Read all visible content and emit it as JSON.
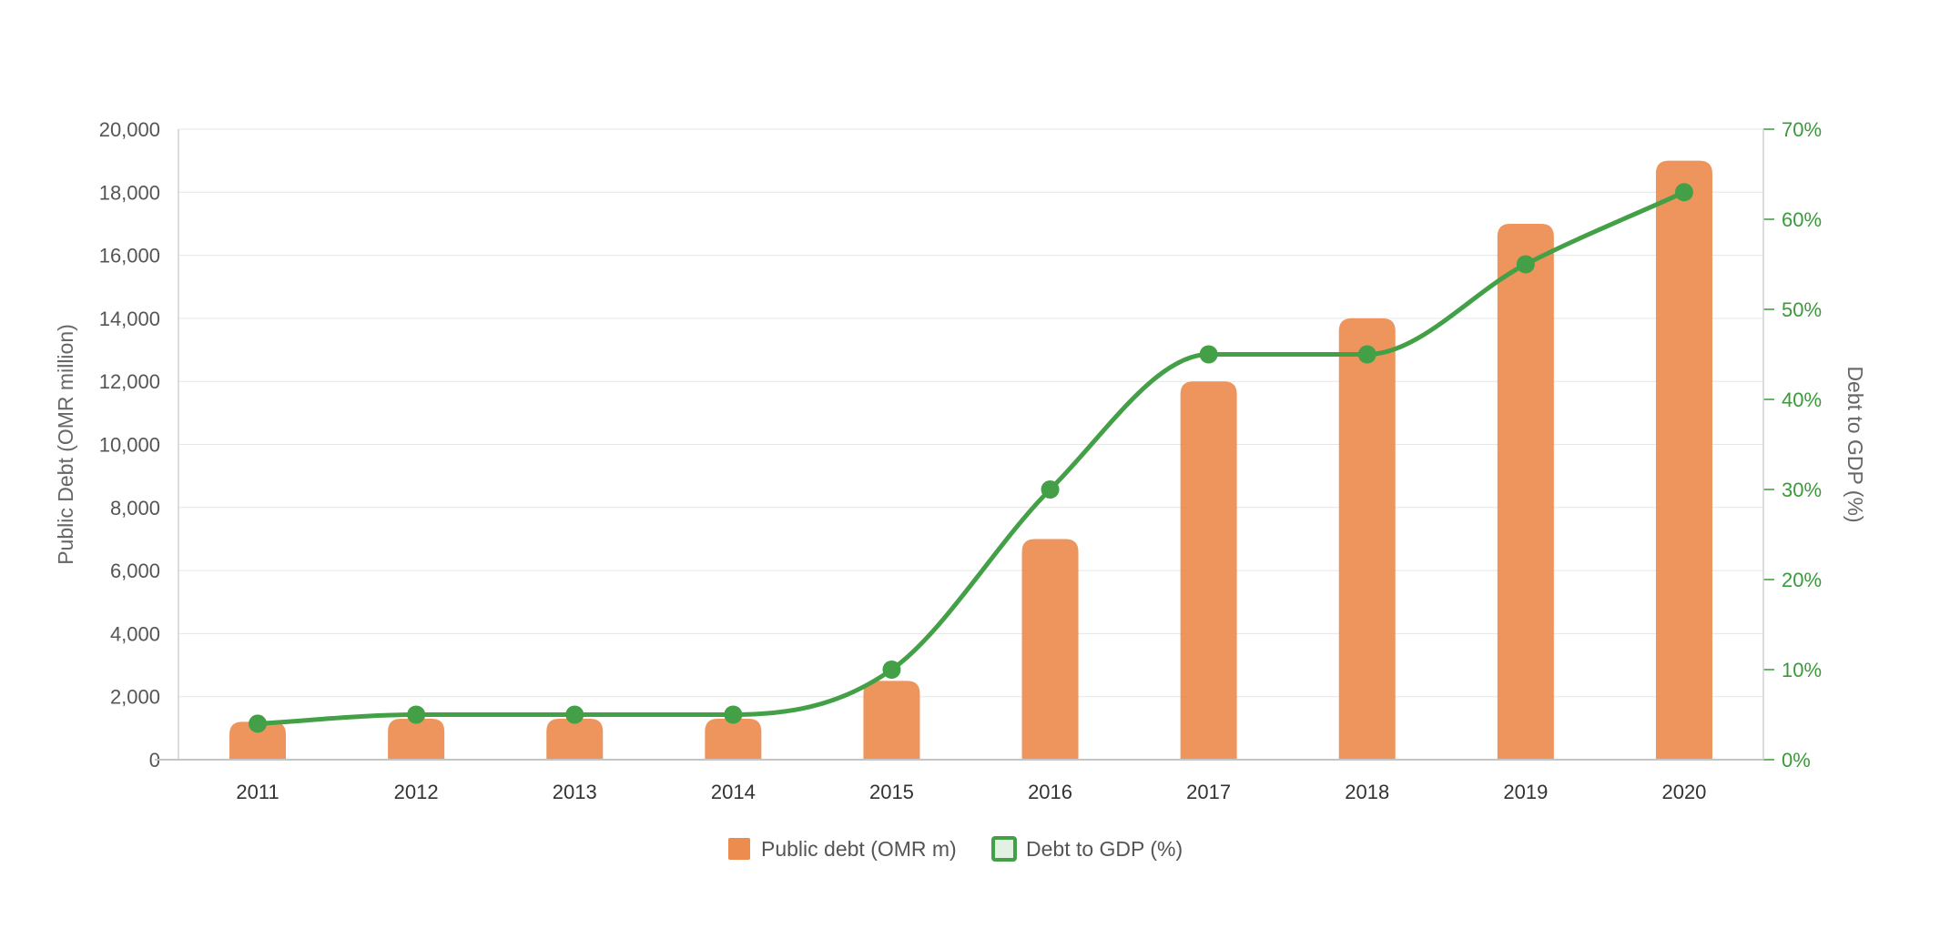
{
  "chart_data": {
    "type": "bar",
    "categories": [
      "2011",
      "2012",
      "2013",
      "2014",
      "2015",
      "2016",
      "2017",
      "2018",
      "2019",
      "2020"
    ],
    "series": [
      {
        "name": "Public debt (OMR m)",
        "type": "bar",
        "axis": "left",
        "color": "#ec8c4f",
        "values": [
          1200,
          1300,
          1300,
          1300,
          2500,
          7000,
          12000,
          14000,
          17000,
          19000
        ]
      },
      {
        "name": "Debt to GDP (%)",
        "type": "line",
        "axis": "right",
        "color": "#43a047",
        "values": [
          4,
          5,
          5,
          5,
          10,
          30,
          45,
          45,
          55,
          63
        ]
      }
    ],
    "y_left": {
      "label": "Public Debt (OMR million)",
      "ylim": [
        0,
        20000
      ],
      "ticks": [
        "0",
        "2,000",
        "4,000",
        "6,000",
        "8,000",
        "10,000",
        "12,000",
        "14,000",
        "16,000",
        "18,000",
        "20,000"
      ]
    },
    "y_right": {
      "label": "Debt to GDP (%)",
      "ylim": [
        0,
        70
      ],
      "ticks": [
        "0%",
        "10%",
        "20%",
        "30%",
        "40%",
        "50%",
        "60%",
        "70%"
      ]
    },
    "grid": true,
    "legend_position": "bottom-center"
  }
}
